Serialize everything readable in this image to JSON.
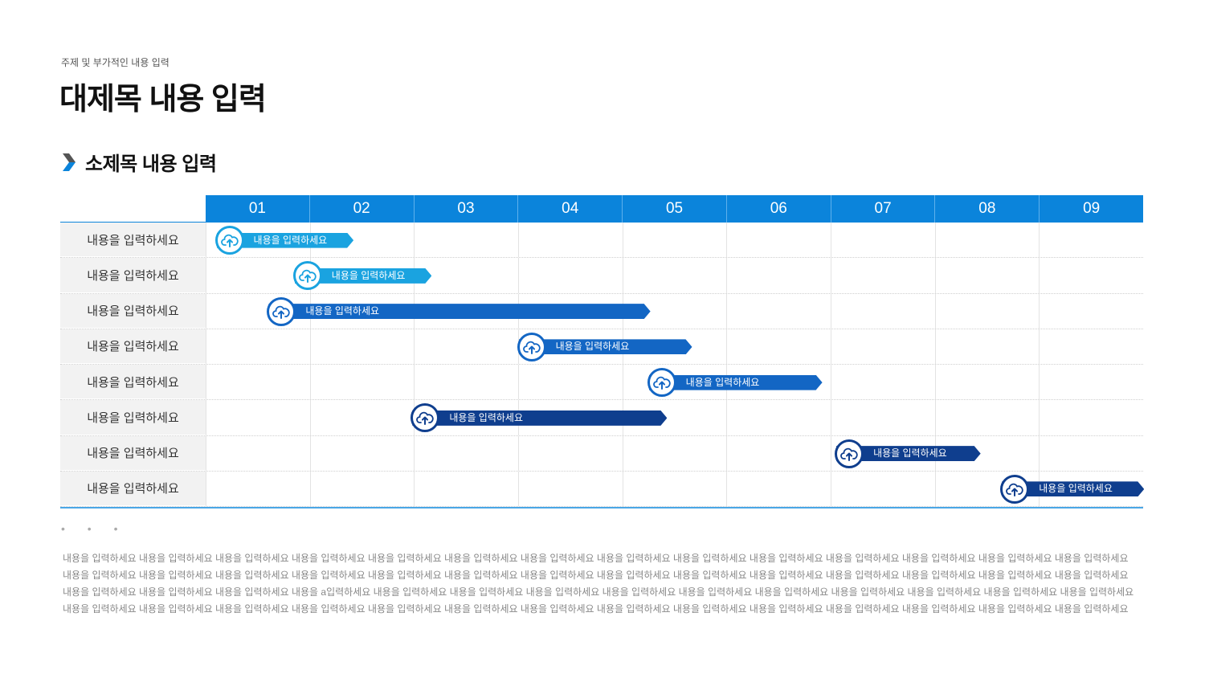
{
  "header": {
    "subtitle": "주제 및 부가적인 내용 입력",
    "title": "대제목 내용 입력"
  },
  "section": {
    "title": "소제목 내용 입력",
    "accent_color": "#0b84db"
  },
  "gantt": {
    "columns": [
      "01",
      "02",
      "03",
      "04",
      "05",
      "06",
      "07",
      "08",
      "09"
    ],
    "row_labels": [
      "내용을 입력하세요",
      "내용을 입력하세요",
      "내용을 입력하세요",
      "내용을 입력하세요",
      "내용을 입력하세요",
      "내용을 입력하세요",
      "내용을 입력하세요",
      "내용을 입력하세요"
    ],
    "tasks": [
      {
        "label": "내용을 입력하세요",
        "start": 0.12,
        "end": 1.42,
        "color": "#1aa3e0",
        "icon": "cloud-upload-icon"
      },
      {
        "label": "내용을 입력하세요",
        "start": 0.87,
        "end": 2.17,
        "color": "#1aa3e0",
        "icon": "cloud-upload-icon"
      },
      {
        "label": "내용을 입력하세요",
        "start": 0.62,
        "end": 4.27,
        "color": "#1366c4",
        "icon": "cloud-upload-icon"
      },
      {
        "label": "내용을 입력하세요",
        "start": 3.02,
        "end": 4.67,
        "color": "#1366c4",
        "icon": "cloud-upload-icon"
      },
      {
        "label": "내용을 입력하세요",
        "start": 4.27,
        "end": 5.92,
        "color": "#1366c4",
        "icon": "cloud-upload-icon"
      },
      {
        "label": "내용을 입력하세요",
        "start": 2.0,
        "end": 4.43,
        "color": "#0f3e8e",
        "icon": "cloud-upload-icon"
      },
      {
        "label": "내용을 입력하세요",
        "start": 6.07,
        "end": 7.44,
        "color": "#0f3e8e",
        "icon": "cloud-upload-icon"
      },
      {
        "label": "내용을 입력하세요",
        "start": 7.66,
        "end": 9.01,
        "color": "#0f3e8e",
        "icon": "cloud-upload-icon"
      }
    ]
  },
  "footer": {
    "dots": "• • •",
    "lines": [
      "내용을 입력하세요 내용을 입력하세요 내용을 입력하세요 내용을 입력하세요 내용을 입력하세요 내용을 입력하세요 내용을 입력하세요 내용을 입력하세요 내용을 입력하세요 내용을 입력하세요 내용을 입력하세요 내용을 입력하세요 내용을 입력하세요 내용을 입력하세요",
      "내용을 입력하세요 내용을 입력하세요 내용을 입력하세요 내용을 입력하세요 내용을 입력하세요 내용을 입력하세요 내용을 입력하세요 내용을 입력하세요 내용을 입력하세요 내용을 입력하세요 내용을 입력하세요 내용을 입력하세요 내용을 입력하세요 내용을 입력하세요",
      "내용을 입력하세요 내용을 입력하세요 내용을 입력하세요 내용을 a입력하세요 내용을 입력하세요 내용을 입력하세요 내용을 입력하세요 내용을 입력하세요 내용을 입력하세요 내용을 입력하세요 내용을 입력하세요 내용을 입력하세요 내용을 입력하세요 내용을 입력하세요",
      "내용을 입력하세요 내용을 입력하세요 내용을 입력하세요 내용을 입력하세요 내용을 입력하세요 내용을 입력하세요 내용을 입력하세요 내용을 입력하세요 내용을 입력하세요 내용을 입력하세요 내용을 입력하세요 내용을 입력하세요 내용을 입력하세요 내용을 입력하세요"
    ]
  }
}
